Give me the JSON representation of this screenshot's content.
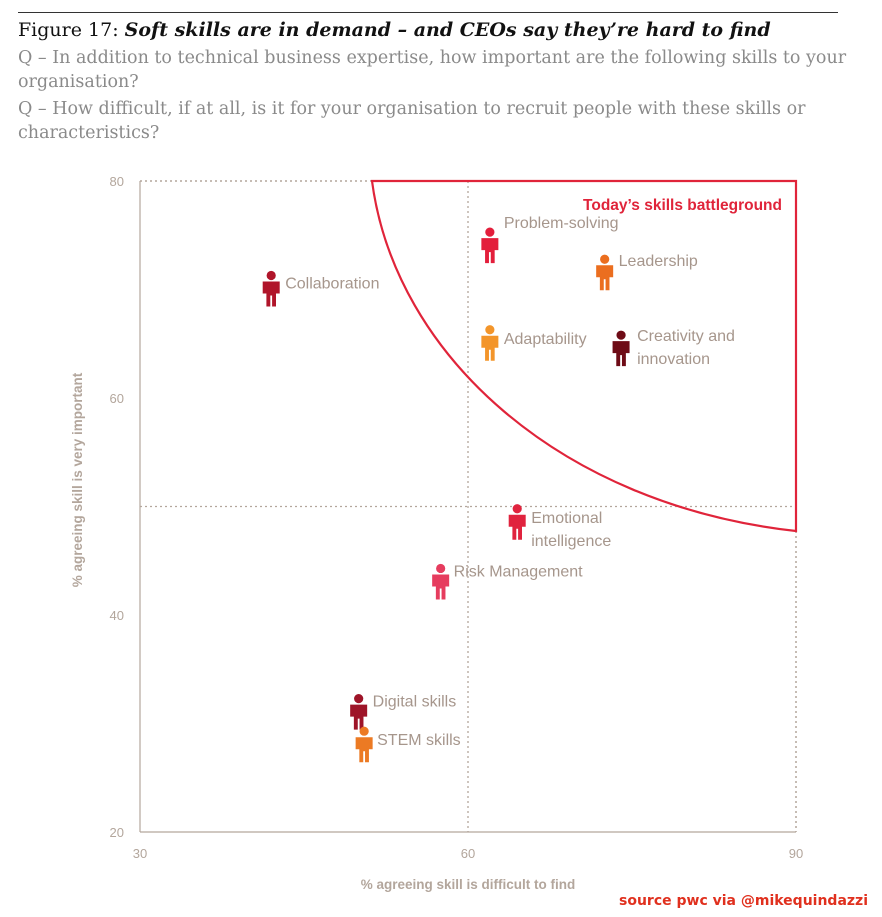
{
  "figure": {
    "label": "Figure 17:",
    "title": "Soft skills are in demand – and CEOs say they’re hard to find",
    "questions": [
      "Q – In addition to technical business expertise, how important are the following skills to your organisation?",
      "Q – How difficult, if at all, is it for your organisation to recruit people with these skills or characteristics?"
    ]
  },
  "chart_data": {
    "type": "scatter",
    "xlabel": "% agreeing skill is difficult to find",
    "ylabel": "% agreeing skill is very important",
    "xlim": [
      30,
      90
    ],
    "ylim": [
      20,
      80
    ],
    "xticks": [
      "30",
      "60",
      "90"
    ],
    "yticks": [
      "20",
      "40",
      "60",
      "80"
    ],
    "reference_lines": {
      "x": 60,
      "y": 50
    },
    "region": {
      "label": "Today’s skills battleground",
      "color": "#e0243a"
    },
    "points": [
      {
        "label": "Problem-solving",
        "x": 62,
        "y": 74,
        "color": "#e31e3b"
      },
      {
        "label": "Leadership",
        "x": 72.5,
        "y": 71.5,
        "color": "#eb6e1f"
      },
      {
        "label": "Collaboration",
        "x": 42,
        "y": 70,
        "color": "#b0152a"
      },
      {
        "label": "Adaptability",
        "x": 62,
        "y": 65,
        "color": "#f3952a"
      },
      {
        "label": "Creativity and innovation",
        "x": 74,
        "y": 64.5,
        "color": "#6e0b16"
      },
      {
        "label": "Emotional intelligence",
        "x": 64.5,
        "y": 48.5,
        "color": "#e0233e"
      },
      {
        "label": "Risk Management",
        "x": 57.5,
        "y": 43,
        "color": "#e63c5e"
      },
      {
        "label": "Digital skills",
        "x": 50,
        "y": 31,
        "color": "#9e1428"
      },
      {
        "label": "STEM skills",
        "x": 50.5,
        "y": 28,
        "color": "#ec7a23"
      }
    ]
  },
  "source": "source pwc via @mikequindazzi"
}
